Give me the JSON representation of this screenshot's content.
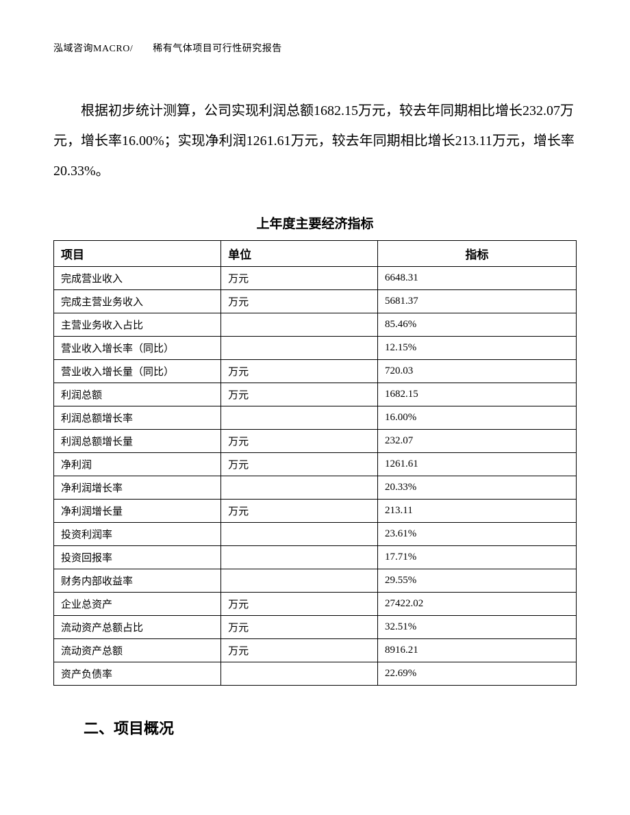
{
  "header": {
    "text": "泓域咨询MACRO/　　稀有气体项目可行性研究报告"
  },
  "paragraph": {
    "text": "根据初步统计测算，公司实现利润总额1682.15万元，较去年同期相比增长232.07万元，增长率16.00%；实现净利润1261.61万元，较去年同期相比增长213.11万元，增长率20.33%。"
  },
  "table": {
    "title": "上年度主要经济指标",
    "columns": [
      "项目",
      "单位",
      "指标"
    ],
    "rows": [
      [
        "完成营业收入",
        "万元",
        "6648.31"
      ],
      [
        "完成主营业务收入",
        "万元",
        "5681.37"
      ],
      [
        "主营业务收入占比",
        "",
        "85.46%"
      ],
      [
        "营业收入增长率（同比）",
        "",
        "12.15%"
      ],
      [
        "营业收入增长量（同比）",
        "万元",
        "720.03"
      ],
      [
        "利润总额",
        "万元",
        "1682.15"
      ],
      [
        "利润总额增长率",
        "",
        "16.00%"
      ],
      [
        "利润总额增长量",
        "万元",
        "232.07"
      ],
      [
        "净利润",
        "万元",
        "1261.61"
      ],
      [
        "净利润增长率",
        "",
        "20.33%"
      ],
      [
        "净利润增长量",
        "万元",
        "213.11"
      ],
      [
        "投资利润率",
        "",
        "23.61%"
      ],
      [
        "投资回报率",
        "",
        "17.71%"
      ],
      [
        "财务内部收益率",
        "",
        "29.55%"
      ],
      [
        "企业总资产",
        "万元",
        "27422.02"
      ],
      [
        "流动资产总额占比",
        "万元",
        "32.51%"
      ],
      [
        "流动资产总额",
        "万元",
        "8916.21"
      ],
      [
        "资产负债率",
        "",
        "22.69%"
      ]
    ]
  },
  "section": {
    "title": "二、项目概况"
  }
}
